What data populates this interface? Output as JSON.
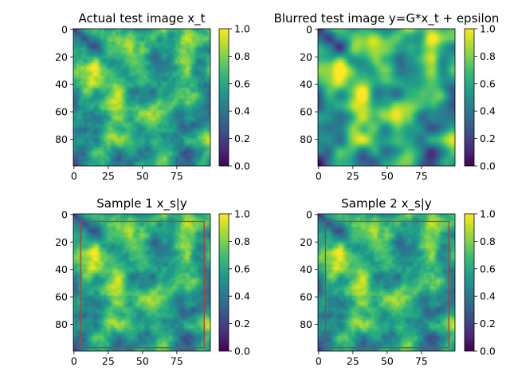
{
  "figure": {
    "colormap": "viridis",
    "colormap_stops": [
      "#440154",
      "#482878",
      "#3e4989",
      "#31688e",
      "#26828e",
      "#1f9e89",
      "#35b779",
      "#6ece58",
      "#b5de2b",
      "#fde725"
    ],
    "box_color": "#c0392b"
  },
  "chart_data": [
    {
      "type": "heatmap",
      "title": "Actual test image x_t",
      "image_size": [
        100,
        100
      ],
      "xlim": [
        0,
        99
      ],
      "ylim": [
        99,
        0
      ],
      "xticks": [
        "0",
        "25",
        "50",
        "75"
      ],
      "yticks": [
        "0",
        "20",
        "40",
        "60",
        "80"
      ],
      "clim": [
        0.0,
        1.0
      ],
      "colorbar_ticks": [
        "0.0",
        "0.2",
        "0.4",
        "0.6",
        "0.8",
        "1.0"
      ],
      "smoothing": "sharp"
    },
    {
      "type": "heatmap",
      "title": "Blurred test image  y=G*x_t + epsilon",
      "image_size": [
        100,
        100
      ],
      "xlim": [
        0,
        99
      ],
      "ylim": [
        99,
        0
      ],
      "xticks": [
        "0",
        "25",
        "50",
        "75"
      ],
      "yticks": [
        "0",
        "20",
        "40",
        "60",
        "80"
      ],
      "clim": [
        0.0,
        1.0
      ],
      "colorbar_ticks": [
        "0.0",
        "0.2",
        "0.4",
        "0.6",
        "0.8",
        "1.0"
      ],
      "smoothing": "blurred"
    },
    {
      "type": "heatmap",
      "title": "Sample 1 x_s|y",
      "image_size": [
        100,
        100
      ],
      "xlim": [
        0,
        99
      ],
      "ylim": [
        99,
        0
      ],
      "xticks": [
        "0",
        "25",
        "50",
        "75"
      ],
      "yticks": [
        "0",
        "20",
        "40",
        "60",
        "80"
      ],
      "clim": [
        0.0,
        1.0
      ],
      "colorbar_ticks": [
        "0.0",
        "0.2",
        "0.4",
        "0.6",
        "0.8",
        "1.0"
      ],
      "smoothing": "sharp",
      "box": {
        "x0": 5,
        "y0": 5,
        "x1": 95,
        "y1": 97
      }
    },
    {
      "type": "heatmap",
      "title": "Sample 2 x_s|y",
      "image_size": [
        100,
        100
      ],
      "xlim": [
        0,
        99
      ],
      "ylim": [
        99,
        0
      ],
      "xticks": [
        "0",
        "25",
        "50",
        "75"
      ],
      "yticks": [
        "0",
        "20",
        "40",
        "60",
        "80"
      ],
      "clim": [
        0.0,
        1.0
      ],
      "colorbar_ticks": [
        "0.0",
        "0.2",
        "0.4",
        "0.6",
        "0.8",
        "1.0"
      ],
      "smoothing": "sharp",
      "box": {
        "x0": 5,
        "y0": 5,
        "x1": 95,
        "y1": 97
      }
    }
  ]
}
